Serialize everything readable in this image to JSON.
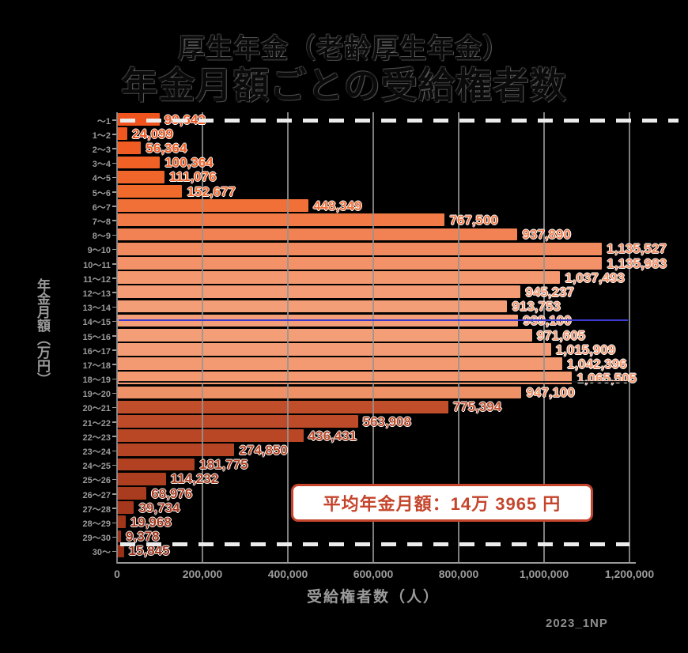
{
  "title": {
    "line1": "厚生年金（老齢厚生年金）",
    "line2": "年金月額ごとの受給権者数"
  },
  "chart_data": {
    "type": "bar",
    "orientation": "horizontal",
    "title": "厚生年金（老齢厚生年金） 年金月額ごとの受給権者数",
    "xlabel": "受給権者数（人）",
    "ylabel": "年金月額（万円）",
    "xlim": [
      0,
      1200000
    ],
    "x_ticks": [
      "0",
      "200,000",
      "400,000",
      "600,000",
      "800,000",
      "1,000,000",
      "1,200,000"
    ],
    "x_tick_values": [
      0,
      200000,
      400000,
      600000,
      800000,
      1000000,
      1200000
    ],
    "grid": true,
    "legend": "none",
    "categories": [
      "～1",
      "1～2",
      "2～3",
      "3～4",
      "4～5",
      "5～6",
      "6～7",
      "7～8",
      "8～9",
      "9～10",
      "10～11",
      "11～12",
      "12～13",
      "13～14",
      "14～15",
      "15～16",
      "16～17",
      "17～18",
      "18～19",
      "19～20",
      "20～21",
      "21～22",
      "22～23",
      "23～24",
      "24～25",
      "25～26",
      "26～27",
      "27～28",
      "28～29",
      "29～30",
      "30～"
    ],
    "values": [
      99642,
      24099,
      56364,
      100364,
      111076,
      152677,
      448349,
      767500,
      937890,
      1135527,
      1135983,
      1037493,
      945237,
      913753,
      939100,
      971605,
      1015909,
      1042396,
      1065505,
      947100,
      775394,
      563908,
      436431,
      274850,
      181775,
      114232,
      68976,
      39734,
      19968,
      9378,
      15845
    ],
    "value_labels": [
      "99,642",
      "24,099",
      "56,364",
      "100,364",
      "111,076",
      "152,677",
      "448,349",
      "767,500",
      "937,890",
      "1,135,527",
      "1,135,983",
      "1,037,493",
      "945,237",
      "913,753",
      "939,100",
      "971,605",
      "1,015,909",
      "1,042,396",
      "1,065,505",
      "947,100",
      "775,394",
      "563,908",
      "436,431",
      "274,850",
      "181,775",
      "114,232",
      "68,976",
      "39,734",
      "19,968",
      "9,378",
      "15,845"
    ],
    "bar_colors": [
      "#f0541e",
      "#f0571f",
      "#f05c22",
      "#f06126",
      "#f06529",
      "#f06a2c",
      "#f17038",
      "#f17a47",
      "#f28254",
      "#f28a5f",
      "#f39168",
      "#f49870",
      "#f49c75",
      "#f49e78",
      "#f49f7a",
      "#f49e78",
      "#f49c75",
      "#f49a72",
      "#f49870",
      "#ef9166",
      "#c14e2b",
      "#bd4a28",
      "#b94726",
      "#b54424",
      "#b14121",
      "#ad3e1f",
      "#a93b1e",
      "#a5381c",
      "#a1351a",
      "#9d3218",
      "#993016"
    ],
    "average_line": {
      "label": "平均年金月額：14万 3965 円",
      "value_yen": 143965,
      "value_man": 14.3965,
      "color": "#3a3ad0"
    },
    "marker_line": {
      "value_man": 18.7,
      "color": "#141414"
    },
    "boundary_dashes": {
      "color": "#ececec"
    }
  },
  "annotation": {
    "text": "平均年金月額：14万 3965 円",
    "border_color": "#c5452c",
    "text_color": "#c5452c",
    "background": "#ffffff"
  },
  "watermark": "2023_1NP",
  "colors": {
    "background": "#000000",
    "axis_text": "#9b9b9b",
    "grid": "#949494",
    "title_text": "#0a0a0a",
    "dash_line": "#ececec",
    "average_line": "#3a3ad0"
  }
}
